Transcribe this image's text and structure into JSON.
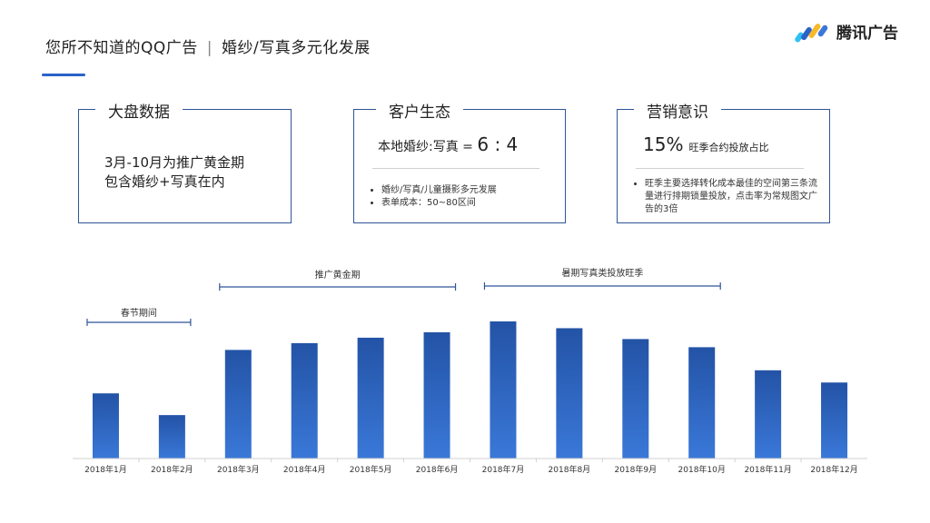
{
  "header": {
    "title_main": "您所不知道的QQ广告",
    "separator": "|",
    "title_sub": "婚纱/写真多元化发展",
    "logo_text": "腾讯广告"
  },
  "cards": {
    "big_data": {
      "title": "大盘数据",
      "line1": "3月-10月为推广黄金期",
      "line2": "包含婚纱+写真在内"
    },
    "customer": {
      "title": "客户生态",
      "headline_prefix": "本地婚纱:写真 = ",
      "headline_big": "6 : 4",
      "bullets": [
        "婚纱/写真/儿童摄影多元发展",
        "表单成本：50~80区间"
      ]
    },
    "marketing": {
      "title": "营销意识",
      "headline_big": "15%",
      "headline_suffix": "旺季合约投放占比",
      "bullets": [
        "旺季主要选择转化成本最佳的空间第三条流量进行排期锁量投放，点击率为常规图文广告的3倍"
      ]
    }
  },
  "colors": {
    "accent": "#2a63c9",
    "card_border": "#2f5596",
    "bar_top": "#2353a6",
    "bar_bottom": "#3a78d8"
  },
  "chart_data": {
    "type": "bar",
    "categories": [
      "2018年1月",
      "2018年2月",
      "2018年3月",
      "2018年4月",
      "2018年5月",
      "2018年6月",
      "2018年7月",
      "2018年8月",
      "2018年9月",
      "2018年10月",
      "2018年11月",
      "2018年12月"
    ],
    "values": [
      48,
      32,
      80,
      85,
      89,
      93,
      101,
      96,
      88,
      82,
      65,
      56
    ],
    "ylim": [
      0,
      105
    ],
    "grid": false,
    "title": "",
    "xlabel": "",
    "ylabel": "",
    "annotations": [
      {
        "label": "春节期间",
        "from": "2018年1月",
        "to": "2018年2月"
      },
      {
        "label": "推广黄金期",
        "from": "2018年3月",
        "to": "2018年6月"
      },
      {
        "label": "暑期写真类投放旺季",
        "from": "2018年7月",
        "to": "2018年10月"
      }
    ]
  }
}
